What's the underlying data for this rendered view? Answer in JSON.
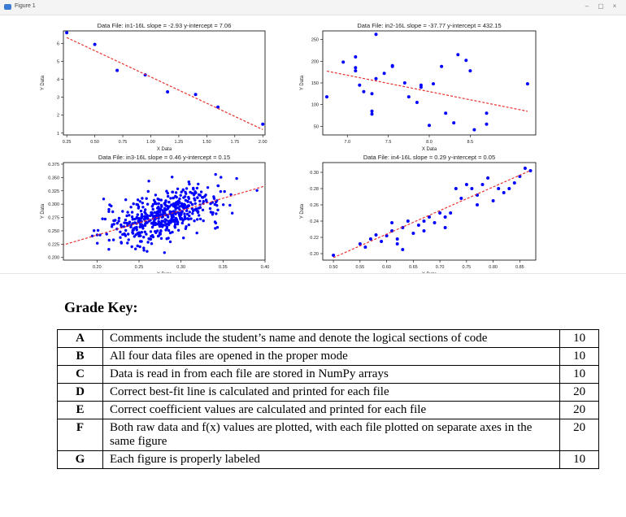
{
  "window": {
    "title": "Figure 1",
    "minimize_glyph": "–",
    "maximize_glyph": "▢",
    "close_glyph": "×"
  },
  "chart_data": [
    {
      "type": "scatter",
      "title": "Data File: in1-16L slope = -2.93 y-intercept = 7.06",
      "xlabel": "X Data",
      "ylabel": "Y Data",
      "xlim": [
        0.22,
        2.02
      ],
      "ylim": [
        0.9,
        6.7
      ],
      "xticks": [
        0.25,
        0.5,
        0.75,
        1.0,
        1.25,
        1.5,
        1.75,
        2.0
      ],
      "xtick_labels": [
        "0.25",
        "0.50",
        "0.75",
        "1.00",
        "1.25",
        "1.50",
        "1.75",
        "2.00"
      ],
      "yticks": [
        1,
        2,
        3,
        4,
        5,
        6
      ],
      "ytick_labels": [
        "1",
        "2",
        "3",
        "4",
        "5",
        "6"
      ],
      "points": [
        [
          0.25,
          6.6
        ],
        [
          0.5,
          5.95
        ],
        [
          0.7,
          4.5
        ],
        [
          0.95,
          4.25
        ],
        [
          1.15,
          3.3
        ],
        [
          1.4,
          3.15
        ],
        [
          1.6,
          2.45
        ],
        [
          2.0,
          1.5
        ]
      ],
      "fit": {
        "slope": -2.93,
        "intercept": 7.06
      }
    },
    {
      "type": "scatter",
      "title": "Data File: in2-16L slope = -37.77 y-intercept = 432.15",
      "xlabel": "X Data",
      "ylabel": "Y Data",
      "xlim": [
        6.7,
        9.3
      ],
      "ylim": [
        30,
        270
      ],
      "xticks": [
        7.0,
        7.5,
        8.0,
        8.5
      ],
      "xtick_labels": [
        "7.0",
        "7.5",
        "8.0",
        "8.5"
      ],
      "yticks": [
        50,
        100,
        150,
        200,
        250
      ],
      "ytick_labels": [
        "50",
        "100",
        "150",
        "200",
        "250"
      ],
      "points": [
        [
          6.75,
          118
        ],
        [
          6.95,
          198
        ],
        [
          7.1,
          210
        ],
        [
          7.1,
          185
        ],
        [
          7.1,
          178
        ],
        [
          7.15,
          145
        ],
        [
          7.2,
          130
        ],
        [
          7.3,
          125
        ],
        [
          7.3,
          85
        ],
        [
          7.3,
          78
        ],
        [
          7.35,
          160
        ],
        [
          7.35,
          262
        ],
        [
          7.45,
          172
        ],
        [
          7.55,
          188
        ],
        [
          7.55,
          190
        ],
        [
          7.7,
          150
        ],
        [
          7.75,
          118
        ],
        [
          7.85,
          105
        ],
        [
          7.9,
          145
        ],
        [
          7.9,
          140
        ],
        [
          8.05,
          148
        ],
        [
          8.0,
          52
        ],
        [
          8.15,
          188
        ],
        [
          8.2,
          80
        ],
        [
          8.3,
          58
        ],
        [
          8.35,
          215
        ],
        [
          8.45,
          202
        ],
        [
          8.5,
          178
        ],
        [
          8.55,
          42
        ],
        [
          8.7,
          80
        ],
        [
          8.7,
          55
        ],
        [
          9.2,
          148
        ]
      ],
      "fit": {
        "slope": -37.77,
        "intercept": 432.15
      }
    },
    {
      "type": "scatter",
      "title": "Data File: in3-16L slope = 0.46 y-intercept = 0.15",
      "xlabel": "X Data",
      "ylabel": "Y Data",
      "xlim": [
        0.16,
        0.4
      ],
      "ylim": [
        0.195,
        0.378
      ],
      "xticks": [
        0.2,
        0.25,
        0.3,
        0.35,
        0.4
      ],
      "xtick_labels": [
        "0.20",
        "0.25",
        "0.30",
        "0.35",
        "0.40"
      ],
      "yticks": [
        0.2,
        0.225,
        0.25,
        0.275,
        0.3,
        0.325,
        0.35,
        0.375
      ],
      "ytick_labels": [
        "0.200",
        "0.225",
        "0.250",
        "0.275",
        "0.300",
        "0.325",
        "0.350",
        "0.375"
      ],
      "cloud": {
        "count": 520,
        "x_mean": 0.28,
        "x_sd": 0.035,
        "slope": 0.46,
        "intercept": 0.15,
        "noise_sd": 0.022,
        "seed": 7
      },
      "fit": {
        "slope": 0.46,
        "intercept": 0.15
      }
    },
    {
      "type": "scatter",
      "title": "Data File: in4-16L slope = 0.29 y-intercept = 0.05",
      "xlabel": "X Data",
      "ylabel": "Y Data",
      "xlim": [
        0.48,
        0.88
      ],
      "ylim": [
        0.192,
        0.312
      ],
      "xticks": [
        0.5,
        0.55,
        0.6,
        0.65,
        0.7,
        0.75,
        0.8,
        0.85
      ],
      "xtick_labels": [
        "0.50",
        "0.55",
        "0.60",
        "0.65",
        "0.70",
        "0.75",
        "0.80",
        "0.85"
      ],
      "yticks": [
        0.2,
        0.22,
        0.24,
        0.26,
        0.28,
        0.3
      ],
      "ytick_labels": [
        "0.20",
        "0.22",
        "0.24",
        "0.26",
        "0.28",
        "0.30"
      ],
      "points": [
        [
          0.5,
          0.198
        ],
        [
          0.55,
          0.212
        ],
        [
          0.56,
          0.208
        ],
        [
          0.57,
          0.218
        ],
        [
          0.58,
          0.223
        ],
        [
          0.59,
          0.215
        ],
        [
          0.6,
          0.222
        ],
        [
          0.61,
          0.228
        ],
        [
          0.61,
          0.238
        ],
        [
          0.62,
          0.218
        ],
        [
          0.62,
          0.212
        ],
        [
          0.63,
          0.205
        ],
        [
          0.63,
          0.232
        ],
        [
          0.64,
          0.24
        ],
        [
          0.65,
          0.225
        ],
        [
          0.66,
          0.235
        ],
        [
          0.67,
          0.24
        ],
        [
          0.67,
          0.228
        ],
        [
          0.68,
          0.245
        ],
        [
          0.69,
          0.238
        ],
        [
          0.7,
          0.25
        ],
        [
          0.71,
          0.245
        ],
        [
          0.71,
          0.232
        ],
        [
          0.72,
          0.25
        ],
        [
          0.73,
          0.28
        ],
        [
          0.74,
          0.268
        ],
        [
          0.75,
          0.285
        ],
        [
          0.76,
          0.28
        ],
        [
          0.77,
          0.272
        ],
        [
          0.77,
          0.26
        ],
        [
          0.78,
          0.285
        ],
        [
          0.79,
          0.293
        ],
        [
          0.8,
          0.265
        ],
        [
          0.81,
          0.28
        ],
        [
          0.82,
          0.275
        ],
        [
          0.83,
          0.28
        ],
        [
          0.84,
          0.287
        ],
        [
          0.85,
          0.295
        ],
        [
          0.86,
          0.305
        ],
        [
          0.87,
          0.302
        ]
      ],
      "fit": {
        "slope": 0.29,
        "intercept": 0.05
      }
    }
  ],
  "colors": {
    "points": "#0000ff",
    "fit_line": "#e8312f"
  },
  "grade_key": {
    "heading": "Grade Key:",
    "rows": [
      {
        "letter": "A",
        "desc": "Comments include the student’s name and denote the logical sections of code",
        "points": "10"
      },
      {
        "letter": "B",
        "desc": "All four data files are opened in the proper mode",
        "points": "10"
      },
      {
        "letter": "C",
        "desc": "Data is read in from each file are stored in NumPy arrays",
        "points": "10"
      },
      {
        "letter": "D",
        "desc": "Correct best-fit line is calculated and printed for each file",
        "points": "20"
      },
      {
        "letter": "E",
        "desc": "Correct coefficient values are calculated and printed for each file",
        "points": "20"
      },
      {
        "letter": "F",
        "desc": "Both raw data and f(x) values are plotted, with each file plotted on separate axes in the same figure",
        "points": "20"
      },
      {
        "letter": "G",
        "desc": "Each figure is properly labeled",
        "points": "10"
      }
    ]
  }
}
